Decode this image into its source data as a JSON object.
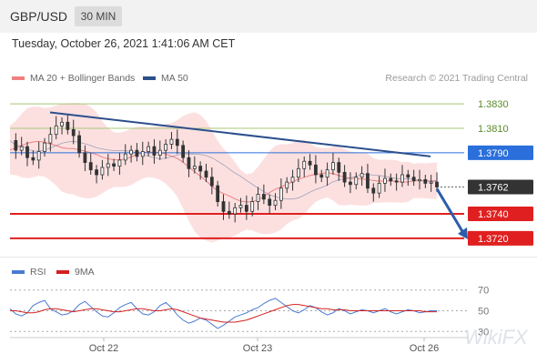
{
  "header": {
    "symbol": "GBP/USD",
    "timeframe": "30 MIN"
  },
  "datetime": "Tuesday, October 26, 2021 1:41:06 AM CET",
  "legend": {
    "ma20": {
      "label": "MA 20 + Bollinger Bands",
      "color": "#f08080"
    },
    "ma50": {
      "label": "MA 50",
      "color": "#2c4f8c"
    },
    "credit": "Research © 2021 Trading Central"
  },
  "chart_data": [
    {
      "type": "candlestick",
      "title": "GBP/USD 30 MIN",
      "x_ticks": [
        "Oct 22",
        "Oct 23",
        "Oct 26"
      ],
      "ylim": [
        1.3705,
        1.3845
      ],
      "levels": [
        {
          "value": 1.383,
          "label": "1.3830",
          "kind": "resistance",
          "color": "#a8c878"
        },
        {
          "value": 1.381,
          "label": "1.3810",
          "kind": "resistance",
          "color": "#a8c878"
        },
        {
          "value": 1.379,
          "label": "1.3790",
          "kind": "pivot",
          "color": "#2a6fdb"
        },
        {
          "value": 1.3762,
          "label": "1.3762",
          "kind": "last_price",
          "color": "#333333"
        },
        {
          "value": 1.374,
          "label": "1.3740",
          "kind": "support",
          "color": "#e02020"
        },
        {
          "value": 1.372,
          "label": "1.3720",
          "kind": "support",
          "color": "#e02020"
        }
      ],
      "trendline": {
        "from_value": 1.3823,
        "to_value": 1.3787
      },
      "projection_arrow": {
        "from_value": 1.3762,
        "to_value": 1.372
      },
      "close_series": [
        1.38,
        1.3792,
        1.3795,
        1.3786,
        1.3784,
        1.3791,
        1.3798,
        1.3805,
        1.3812,
        1.3815,
        1.3809,
        1.3804,
        1.379,
        1.3782,
        1.3776,
        1.3772,
        1.3778,
        1.3781,
        1.3779,
        1.3784,
        1.3789,
        1.3792,
        1.3787,
        1.3791,
        1.3795,
        1.3788,
        1.3792,
        1.3797,
        1.3801,
        1.3796,
        1.3786,
        1.3777,
        1.3779,
        1.3775,
        1.377,
        1.3763,
        1.375,
        1.3742,
        1.374,
        1.3745,
        1.3747,
        1.3742,
        1.375,
        1.3756,
        1.3752,
        1.3747,
        1.3751,
        1.3761,
        1.3766,
        1.377,
        1.3777,
        1.3783,
        1.378,
        1.3772,
        1.377,
        1.3776,
        1.3782,
        1.3774,
        1.3766,
        1.3764,
        1.377,
        1.3773,
        1.3761,
        1.3757,
        1.3765,
        1.3769,
        1.3767,
        1.3766,
        1.3772,
        1.377,
        1.3767,
        1.3768,
        1.3765,
        1.3766,
        1.3762
      ]
    },
    {
      "type": "line",
      "title": "RSI",
      "series": [
        {
          "name": "RSI",
          "color": "#4a7bd0"
        },
        {
          "name": "9MA",
          "color": "#d42020"
        }
      ],
      "y_ticks": [
        "70",
        "50",
        "30"
      ],
      "ylim": [
        25,
        75
      ],
      "rsi_values": [
        52,
        47,
        45,
        48,
        55,
        58,
        60,
        52,
        49,
        46,
        47,
        50,
        56,
        59,
        54,
        49,
        45,
        44,
        48,
        53,
        56,
        58,
        52,
        47,
        46,
        49,
        55,
        58,
        53,
        46,
        41,
        38,
        40,
        43,
        41,
        37,
        33,
        36,
        40,
        44,
        46,
        48,
        51,
        53,
        57,
        60,
        62,
        58,
        54,
        50,
        48,
        51,
        55,
        53,
        49,
        46,
        48,
        52,
        50,
        47,
        49,
        51,
        50,
        48,
        50,
        52,
        49,
        47,
        49,
        51,
        50,
        48,
        49,
        50,
        50
      ],
      "ma9_values": [
        50,
        50,
        49,
        48,
        48,
        49,
        51,
        52,
        52,
        51,
        50,
        49,
        50,
        51,
        52,
        52,
        51,
        50,
        49,
        49,
        50,
        51,
        52,
        52,
        51,
        50,
        50,
        51,
        52,
        51,
        49,
        47,
        45,
        43,
        42,
        41,
        40,
        39,
        39,
        39,
        40,
        41,
        43,
        45,
        47,
        49,
        51,
        53,
        55,
        56,
        56,
        55,
        54,
        53,
        52,
        52,
        51,
        51,
        51,
        50,
        50,
        50,
        50,
        50,
        50,
        50,
        50,
        50,
        50,
        50,
        50,
        50,
        49,
        49,
        49
      ]
    }
  ],
  "watermark": "WikiFX"
}
